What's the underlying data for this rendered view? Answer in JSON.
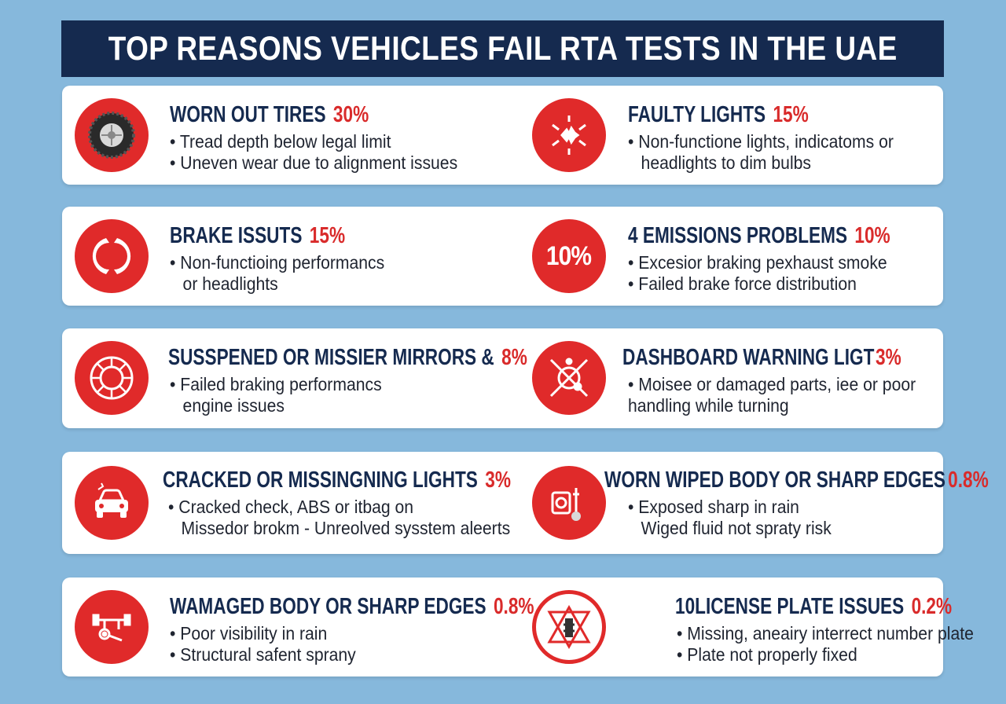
{
  "title": "TOP REASONS VEHICLES FAIL RTA TESTS IN THE UAE",
  "colors": {
    "navy": "#152a4f",
    "red": "#e02a2a",
    "background": "#86b8dc",
    "card": "#ffffff"
  },
  "items": [
    {
      "icon": "tire-icon",
      "heading": "WORN OUT TIRES",
      "percent": "30%",
      "lines": [
        "• Tread depth below legal limit",
        "• Uneven wear due to alignment issues"
      ]
    },
    {
      "icon": "headlight-burst-icon",
      "heading": "FAULTY LIGHTS",
      "percent": "15%",
      "lines": [
        "• Non-functione lights, indicatoms or",
        "headlights to dim bulbs"
      ]
    },
    {
      "icon": "brake-pads-icon",
      "heading": "BRAKE ISSUTS",
      "percent": "15%",
      "lines": [
        "• Non-functioing performancs",
        "or headlights"
      ]
    },
    {
      "icon": "ten-percent-icon",
      "icon_text": "10%",
      "heading": "4 EMISSIONS PROBLEMS",
      "percent": "10%",
      "lines": [
        "• Excesior braking pexhaust smoke",
        "• Failed brake force distribution"
      ]
    },
    {
      "icon": "wheel-disc-icon",
      "heading": "SUSSPENED OR MISSIER MIRRORS &",
      "percent": "8%",
      "lines": [
        "• Failed braking performancs",
        "engine issues"
      ]
    },
    {
      "icon": "warning-gauge-icon",
      "heading": "DASHBOARD WARNING LIGT",
      "percent": "3%",
      "lines": [
        "• Moisee or damaged parts, iee or poor",
        "handling while turning"
      ]
    },
    {
      "icon": "car-front-icon",
      "heading": "CRACKED OR MISSINGNING LIGHTS",
      "percent": "3%",
      "lines": [
        "• Cracked check, ABS or itbag on",
        "Missedor brokm - Unreolved sysstem aleerts"
      ]
    },
    {
      "icon": "wiper-icon",
      "heading": "WORN WIPED BODY OR SHARP EDGES",
      "percent": "0.8%",
      "lines": [
        "• Exposed sharp in rain",
        "Wiged fluid not spraty risk"
      ]
    },
    {
      "icon": "suspension-icon",
      "heading": "WAMAGED BODY OR SHARP EDGES",
      "percent": "0.8%",
      "lines": [
        "• Poor visibility in rain",
        "• Structural safent sprany"
      ]
    },
    {
      "icon": "license-plate-warning-icon",
      "heading": "10LICENSE PLATE ISSUES",
      "percent": "0.2%",
      "lines": [
        "• Missing, aneairy interrect number plate",
        "• Plate not properly fixed"
      ]
    }
  ]
}
